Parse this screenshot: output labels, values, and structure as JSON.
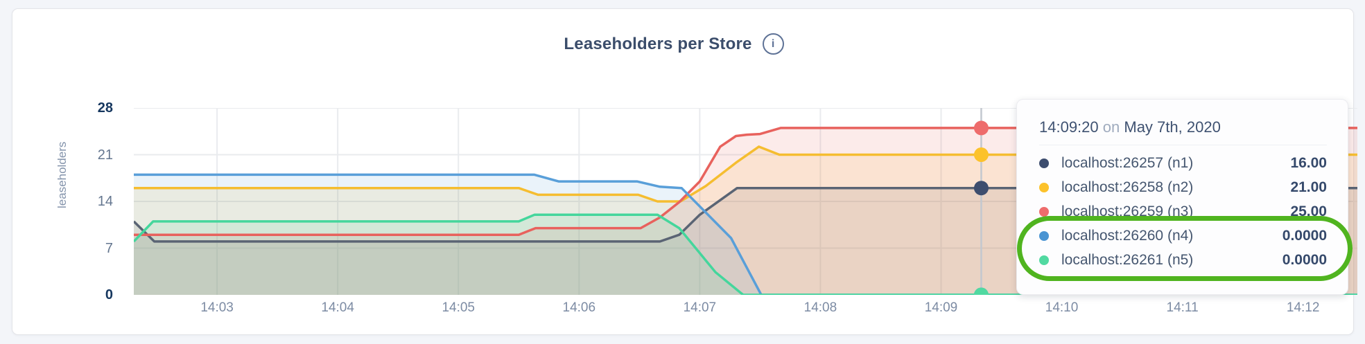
{
  "header": {
    "title": "Leaseholders per Store"
  },
  "chart_data": {
    "type": "area",
    "title": "Leaseholders per Store",
    "xlabel": "",
    "ylabel": "leaseholders",
    "ylim": [
      0,
      28
    ],
    "grid": true,
    "yticks": [
      {
        "value": 28,
        "label": "28",
        "strong": true
      },
      {
        "value": 21,
        "label": "21",
        "strong": false
      },
      {
        "value": 14,
        "label": "14",
        "strong": false
      },
      {
        "value": 7,
        "label": "7",
        "strong": false
      },
      {
        "value": 0,
        "label": "0",
        "strong": true
      }
    ],
    "xticks": [
      {
        "minute": 3,
        "label": "14:03"
      },
      {
        "minute": 4,
        "label": "14:04"
      },
      {
        "minute": 5,
        "label": "14:05"
      },
      {
        "minute": 6,
        "label": "14:06"
      },
      {
        "minute": 7,
        "label": "14:07"
      },
      {
        "minute": 8,
        "label": "14:08"
      },
      {
        "minute": 9,
        "label": "14:09"
      },
      {
        "minute": 10,
        "label": "14:10"
      },
      {
        "minute": 11,
        "label": "14:11"
      },
      {
        "minute": 12,
        "label": "14:12"
      }
    ],
    "x_domain_minutes": [
      2.31,
      12.45
    ],
    "hover": {
      "time_minutes": 9.333,
      "time_label": "14:09:20"
    },
    "series": [
      {
        "name": "localhost:26257 (n1)",
        "line_color": "#5a6474",
        "dot_color": "#3d4d6e",
        "hover_value": 16,
        "points": [
          [
            2.31,
            11
          ],
          [
            2.48,
            8
          ],
          [
            6.67,
            8
          ],
          [
            6.83,
            9
          ],
          [
            7.0,
            12
          ],
          [
            7.31,
            16
          ],
          [
            12.45,
            16
          ]
        ]
      },
      {
        "name": "localhost:26258 (n2)",
        "line_color": "#f5bd30",
        "dot_color": "#fcc22b",
        "hover_value": 21,
        "points": [
          [
            2.31,
            16
          ],
          [
            5.5,
            16
          ],
          [
            5.66,
            15
          ],
          [
            6.49,
            15
          ],
          [
            6.65,
            14
          ],
          [
            6.84,
            14
          ],
          [
            7.05,
            16.3
          ],
          [
            7.3,
            19.8
          ],
          [
            7.49,
            22.2
          ],
          [
            7.66,
            21
          ],
          [
            12.45,
            21
          ]
        ]
      },
      {
        "name": "localhost:26259 (n3)",
        "line_color": "#e8625d",
        "dot_color": "#ee6c6c",
        "hover_value": 25,
        "points": [
          [
            2.31,
            9
          ],
          [
            5.5,
            9
          ],
          [
            5.64,
            10
          ],
          [
            6.51,
            10
          ],
          [
            6.67,
            11.6
          ],
          [
            6.83,
            13.9
          ],
          [
            7.0,
            17
          ],
          [
            7.17,
            22.2
          ],
          [
            7.3,
            23.8
          ],
          [
            7.39,
            24
          ],
          [
            7.5,
            24.1
          ],
          [
            7.67,
            25
          ],
          [
            12.45,
            25
          ]
        ]
      },
      {
        "name": "localhost:26260 (n4)",
        "line_color": "#599fd9",
        "dot_color": "#4a94d2",
        "hover_value": 0,
        "points": [
          [
            2.31,
            18
          ],
          [
            5.63,
            18
          ],
          [
            5.83,
            17
          ],
          [
            6.48,
            17
          ],
          [
            6.67,
            16.2
          ],
          [
            6.85,
            16
          ],
          [
            7.26,
            8.5
          ],
          [
            7.51,
            0
          ],
          [
            12.45,
            0
          ]
        ]
      },
      {
        "name": "localhost:26261 (n5)",
        "line_color": "#44d69c",
        "dot_color": "#51d9a1",
        "hover_value": 0,
        "points": [
          [
            2.31,
            8
          ],
          [
            2.47,
            11
          ],
          [
            5.5,
            11
          ],
          [
            5.63,
            12
          ],
          [
            6.65,
            12
          ],
          [
            6.83,
            10
          ],
          [
            7.13,
            3.4
          ],
          [
            7.36,
            0
          ],
          [
            12.45,
            0
          ]
        ]
      }
    ],
    "style": {
      "fill_opacity": 0.13,
      "grid_color": "#e9ebee",
      "hover_line_color": "#c3c8cf"
    }
  },
  "tooltip": {
    "time": "14:09:20",
    "on_word": "on",
    "date": "May 7th, 2020",
    "rows": [
      {
        "name": "localhost:26257 (n1)",
        "value": "16.00",
        "color": "#3d4d6e"
      },
      {
        "name": "localhost:26258 (n2)",
        "value": "21.00",
        "color": "#fcc22b"
      },
      {
        "name": "localhost:26259 (n3)",
        "value": "25.00",
        "color": "#ee6c6c"
      },
      {
        "name": "localhost:26260 (n4)",
        "value": "0.0000",
        "color": "#4a94d2"
      },
      {
        "name": "localhost:26261 (n5)",
        "value": "0.0000",
        "color": "#51d9a1"
      }
    ]
  },
  "annotation": {
    "shape": "ellipse",
    "color": "#50b41f",
    "highlights": [
      "localhost:26260 (n4)",
      "localhost:26261 (n5)"
    ]
  }
}
